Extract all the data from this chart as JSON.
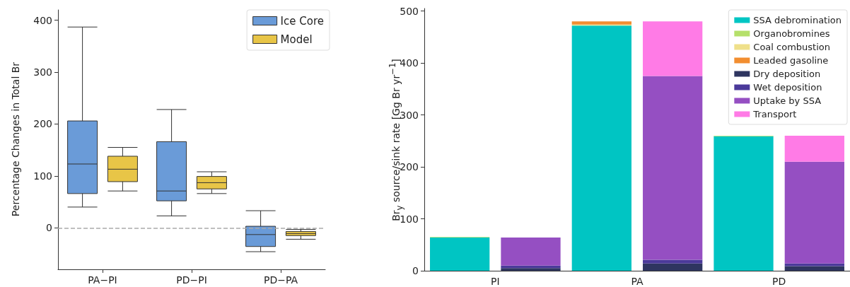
{
  "chart_data": [
    {
      "type": "box",
      "ylabel": "Percentage Changes in Total Br",
      "categories": [
        "PA−PI",
        "PD−PI",
        "PD−PA"
      ],
      "ylim": [
        -80,
        420
      ],
      "yticks": [
        0,
        100,
        200,
        300,
        400
      ],
      "legend": "top right",
      "grid": false,
      "ref_lines": [
        {
          "axis": "y",
          "value": 0,
          "color": "#aaaaaa",
          "line_style": "dashed"
        }
      ],
      "series": [
        {
          "name": "Ice Core",
          "color": "#6a9bd8",
          "boxes": [
            {
              "low": 40,
              "q1": 66,
              "median": 123,
              "q3": 206,
              "high": 387
            },
            {
              "low": 23,
              "q1": 52,
              "median": 71,
              "q3": 166,
              "high": 228
            },
            {
              "low": -46,
              "q1": -36,
              "median": -13,
              "q3": 3,
              "high": 33
            }
          ]
        },
        {
          "name": "Model",
          "color": "#e8c547",
          "boxes": [
            {
              "low": 71,
              "q1": 89,
              "median": 113,
              "q3": 138,
              "high": 155
            },
            {
              "low": 66,
              "q1": 75,
              "median": 87,
              "q3": 99,
              "high": 108
            },
            {
              "low": -22,
              "q1": -15,
              "median": -11,
              "q3": -7,
              "high": -3
            }
          ]
        }
      ]
    },
    {
      "type": "bar",
      "stacked": true,
      "ylabel": "Br$_{y}$ source/sink rate [Gg Br yr$^{−1}$]",
      "categories": [
        "PI",
        null,
        "PA",
        null,
        "PD",
        null
      ],
      "ylim": [
        0,
        505
      ],
      "yticks": [
        0,
        100,
        200,
        300,
        400,
        500
      ],
      "legend": "top right",
      "grid": false,
      "series": [
        {
          "name": "SSA debromination",
          "color": "#00c5c3",
          "values": [
            64,
            null,
            472,
            null,
            259,
            null
          ]
        },
        {
          "name": "Organobromines",
          "color": "#b5e06a",
          "values": [
            1,
            null,
            1,
            null,
            1,
            null
          ]
        },
        {
          "name": "Coal combustion",
          "color": "#efe08a",
          "values": [
            0,
            null,
            1,
            null,
            0,
            null
          ]
        },
        {
          "name": "Leaded gasoline",
          "color": "#f28e30",
          "values": [
            0,
            null,
            6,
            null,
            0,
            null
          ]
        },
        {
          "name": "Dry deposition",
          "color": "#2e3560",
          "values": [
            null,
            5,
            null,
            14,
            null,
            9
          ]
        },
        {
          "name": "Wet deposition",
          "color": "#4b3a9a",
          "values": [
            null,
            5,
            null,
            7,
            null,
            5
          ]
        },
        {
          "name": "Uptake by SSA",
          "color": "#954fc2",
          "values": [
            null,
            54,
            null,
            354,
            null,
            196
          ]
        },
        {
          "name": "Transport",
          "color": "#ff7be6",
          "values": [
            null,
            0,
            null,
            105,
            null,
            50
          ]
        }
      ]
    }
  ]
}
